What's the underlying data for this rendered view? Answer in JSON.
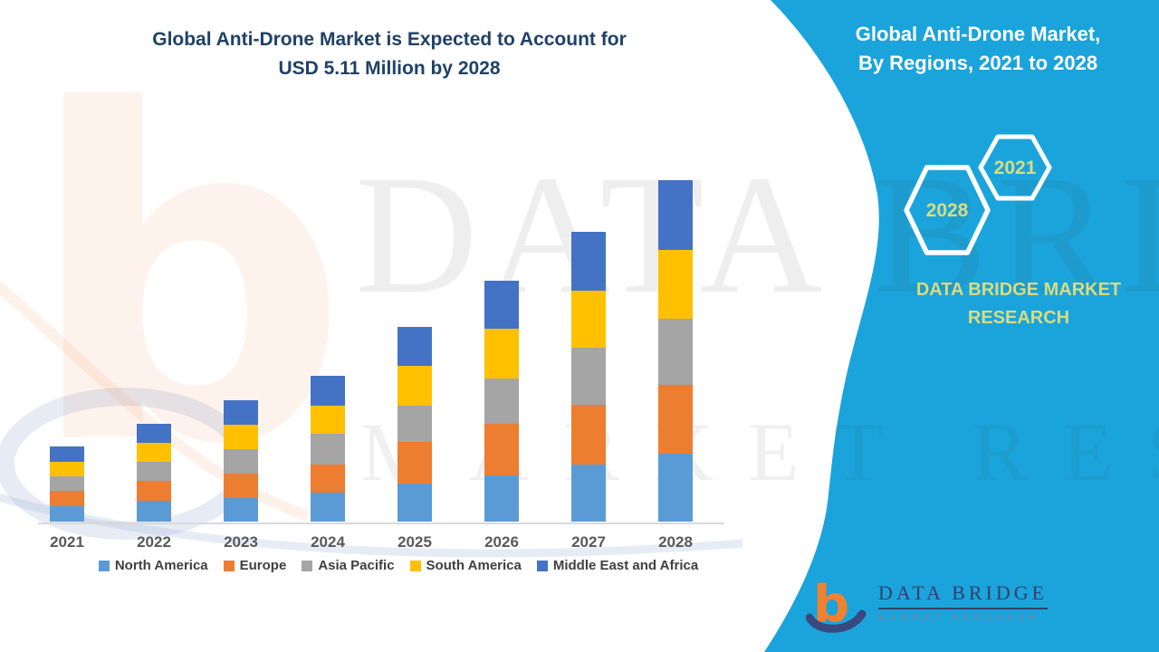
{
  "colors": {
    "accent_cyan": "#1BA4DB",
    "title_navy": "#1F4168",
    "khaki_text": "#D7DC82",
    "logo_orange": "#F0812F",
    "logo_navy": "#39497E",
    "axis_label_gray": "#595959",
    "legend_text_gray": "#3F3F3F"
  },
  "main_title": {
    "line1": "Global Anti-Drone Market is Expected to Account for",
    "line2": "USD 5.11 Million by 2028"
  },
  "side_panel": {
    "title_line1": "Global Anti-Drone Market,",
    "title_line2": "By Regions, 2021 to 2028",
    "hexagons": [
      {
        "label": "2028"
      },
      {
        "label": "2021"
      }
    ],
    "brand_line1": "DATA BRIDGE MARKET",
    "brand_line2": "RESEARCH"
  },
  "watermark": {
    "line1": "DATA BRIDGE",
    "line2": "MARKET RESEARCH"
  },
  "logo": {
    "glyph": "b",
    "name": "DATA BRIDGE",
    "tagline": "MARKET RESEARCH"
  },
  "chart_data": {
    "type": "bar",
    "stacked": true,
    "title": "Global Anti-Drone Market is Expected to Account for USD 5.11 Million by 2028",
    "unit": "USD Million",
    "categories": [
      "2021",
      "2022",
      "2023",
      "2024",
      "2025",
      "2026",
      "2027",
      "2028"
    ],
    "series": [
      {
        "name": "North America",
        "color": "#5B9BD5",
        "values": [
          0.23,
          0.31,
          0.35,
          0.44,
          0.57,
          0.69,
          0.85,
          1.01
        ]
      },
      {
        "name": "Europe",
        "color": "#ED7D31",
        "values": [
          0.23,
          0.3,
          0.37,
          0.42,
          0.62,
          0.77,
          0.9,
          1.03
        ]
      },
      {
        "name": "Asia Pacific",
        "color": "#A5A5A5",
        "values": [
          0.22,
          0.28,
          0.37,
          0.46,
          0.55,
          0.68,
          0.85,
          0.99
        ]
      },
      {
        "name": "South America",
        "color": "#FFC000",
        "values": [
          0.21,
          0.29,
          0.36,
          0.42,
          0.59,
          0.74,
          0.86,
          1.03
        ]
      },
      {
        "name": "Middle East and Africa",
        "color": "#4472C4",
        "values": [
          0.23,
          0.28,
          0.36,
          0.44,
          0.58,
          0.72,
          0.87,
          1.05
        ]
      }
    ],
    "totals": [
      1.12,
      1.46,
      1.81,
      2.18,
      2.91,
      3.6,
      4.33,
      5.11
    ],
    "x_axis_labels_visible": true,
    "y_axis_visible": false,
    "gridlines": false,
    "legend_position": "bottom"
  }
}
